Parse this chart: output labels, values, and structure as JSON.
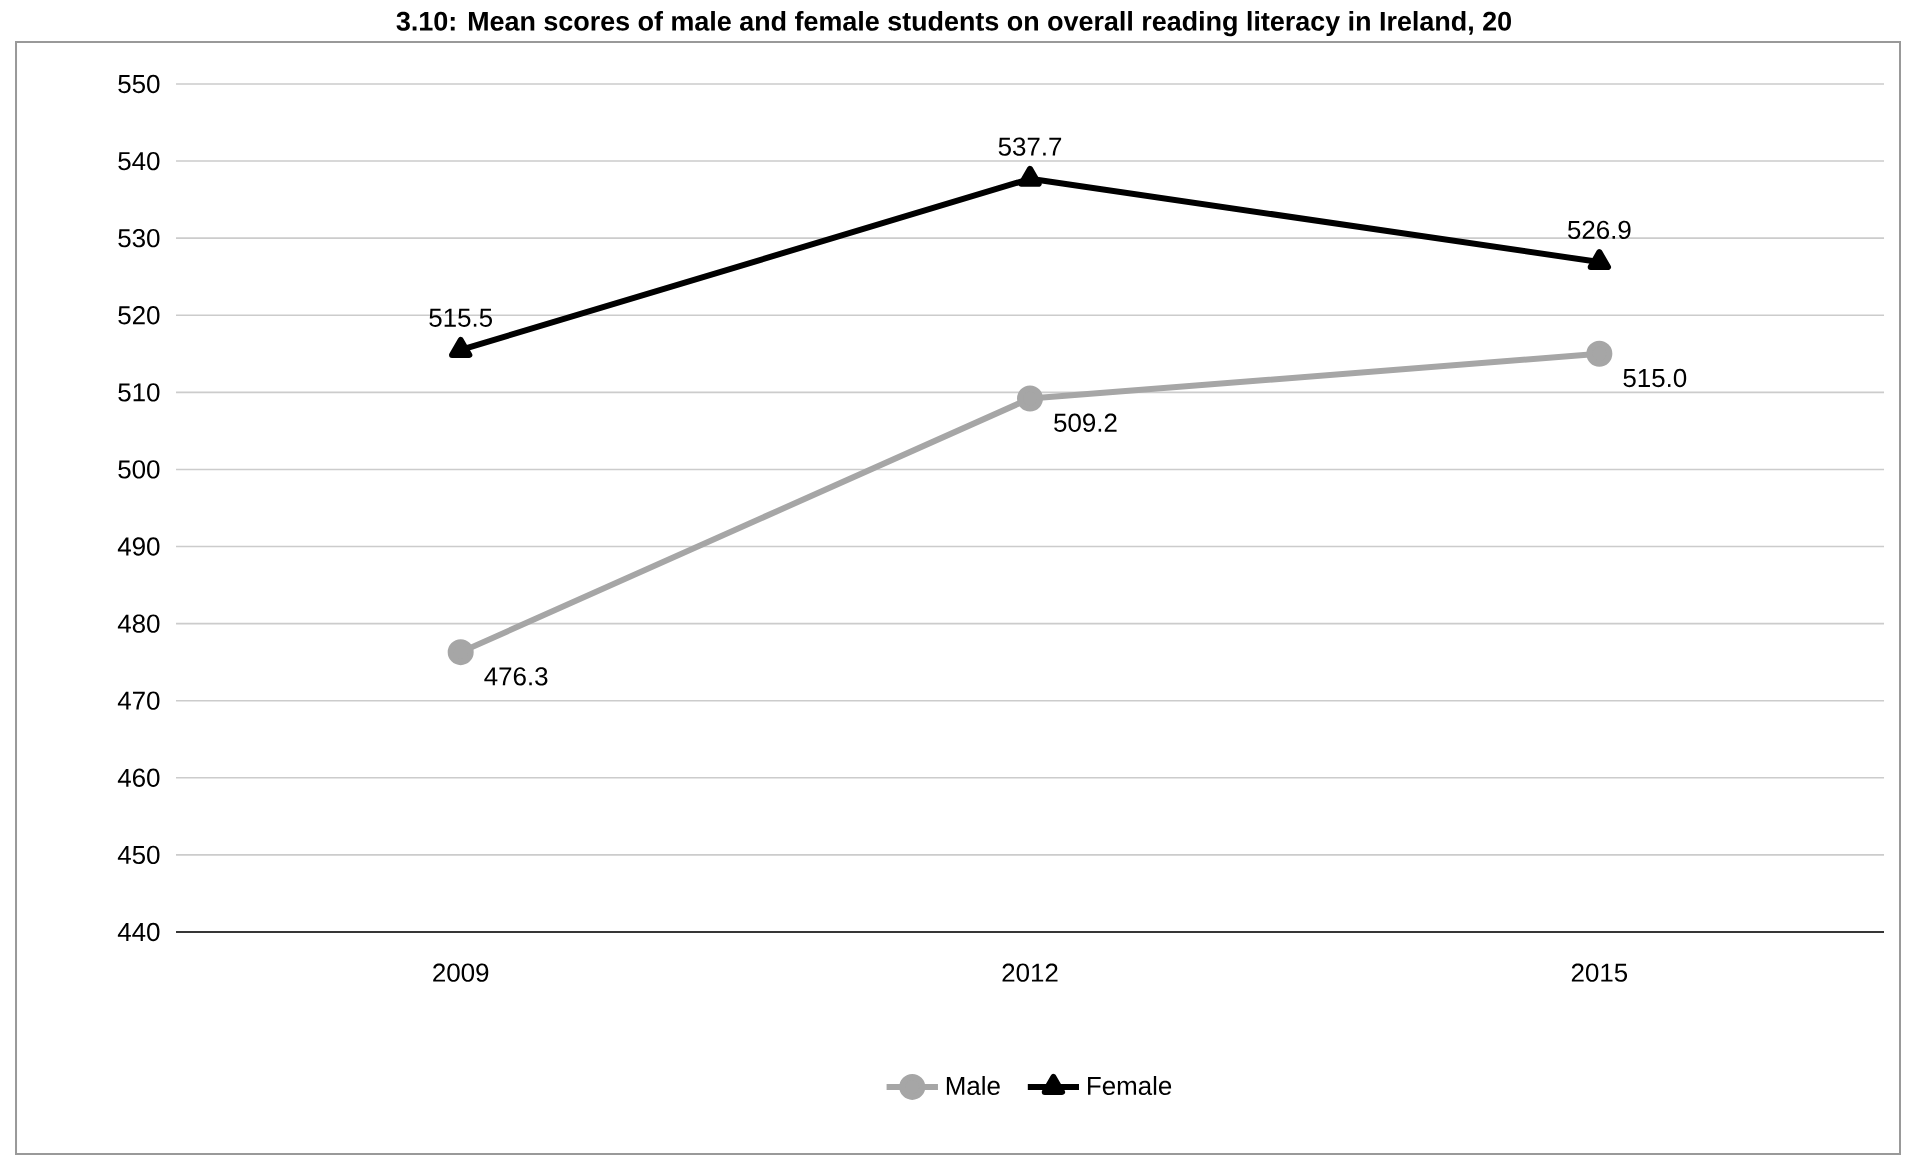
{
  "chart_data": {
    "type": "line",
    "title": "3.10: Mean scores of male and female students on overall reading literacy in Ireland, 20",
    "categories": [
      "2009",
      "2012",
      "2015"
    ],
    "series": [
      {
        "name": "Male",
        "color": "#a6a6a6",
        "values": [
          476.3,
          509.2,
          515.0
        ],
        "marker": "circle",
        "value_labels": [
          "476.3",
          "509.2",
          "515.0"
        ]
      },
      {
        "name": "Female",
        "color": "#000000",
        "values": [
          515.5,
          537.7,
          526.9
        ],
        "marker": "triangle",
        "value_labels": [
          "515.5",
          "537.7",
          "526.9"
        ]
      }
    ],
    "ylim": [
      440,
      550
    ],
    "yticks": [
      440,
      450,
      460,
      470,
      480,
      490,
      500,
      510,
      520,
      530,
      540,
      550
    ],
    "grid": "y",
    "legend": "bottom",
    "line_style": "solid"
  }
}
